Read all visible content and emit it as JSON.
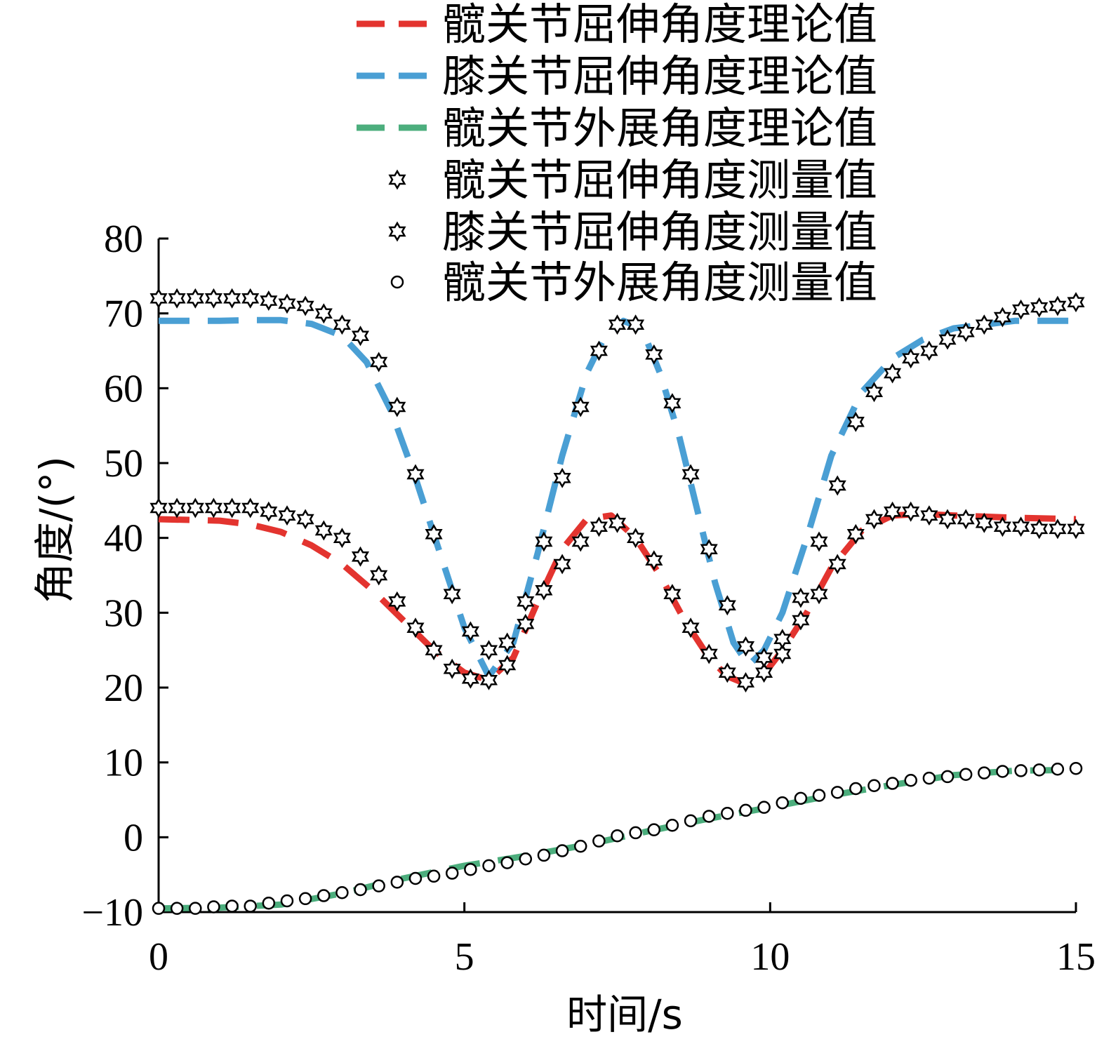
{
  "chart_data": {
    "type": "line",
    "xlabel": "时间/s",
    "ylabel": "角度/(°)",
    "xlim": [
      0,
      15
    ],
    "ylim": [
      -10,
      80
    ],
    "xticks": [
      0,
      5,
      10,
      15
    ],
    "yticks": [
      -10,
      0,
      10,
      20,
      30,
      40,
      50,
      60,
      70,
      80
    ],
    "grid": false,
    "legend_position": "top",
    "series": [
      {
        "name": "髋关节屈伸角度理论值",
        "style": "dashed",
        "color": "#e3342f",
        "x": [
          0,
          1,
          1.5,
          2,
          2.5,
          3,
          3.5,
          4,
          4.5,
          5,
          5.4,
          5.8,
          6.2,
          6.6,
          7,
          7.4,
          7.8,
          8.2,
          8.6,
          9,
          9.3,
          9.6,
          9.9,
          10.2,
          10.6,
          11,
          11.5,
          12,
          12.5,
          13,
          14,
          15
        ],
        "y": [
          42.5,
          42.3,
          41.8,
          40.8,
          39,
          36.5,
          33,
          29,
          25,
          22,
          21,
          24,
          31.5,
          38.5,
          42.5,
          43,
          40,
          35,
          29,
          24,
          21.5,
          20.5,
          21.8,
          25,
          30,
          36,
          41,
          43,
          43.2,
          43,
          42.7,
          42.5
        ]
      },
      {
        "name": "膝关节屈伸角度理论值",
        "style": "dashed",
        "color": "#4a9fd4",
        "x": [
          0,
          1,
          1.5,
          2,
          2.5,
          3,
          3.4,
          3.8,
          4.2,
          4.6,
          5,
          5.4,
          5.8,
          6.2,
          6.6,
          7,
          7.3,
          7.6,
          7.9,
          8.2,
          8.5,
          8.8,
          9.1,
          9.4,
          9.65,
          9.9,
          10.2,
          10.6,
          11,
          11.5,
          12,
          12.5,
          13,
          14,
          15
        ],
        "y": [
          69,
          69,
          69.1,
          69.1,
          68.6,
          67,
          63.5,
          57,
          48,
          38,
          28,
          21.5,
          26,
          38,
          51,
          62,
          67,
          69,
          68,
          62,
          54,
          44,
          34,
          26,
          23,
          25,
          30,
          40,
          51,
          59.5,
          64,
          66.5,
          68,
          69,
          69
        ]
      },
      {
        "name": "髋关节外展角度理论值",
        "style": "dashed",
        "color": "#4cae7d",
        "x": [
          0,
          1,
          2,
          3,
          4,
          5,
          6,
          7,
          8,
          9,
          10,
          11,
          12,
          13,
          14,
          15
        ],
        "y": [
          -9.5,
          -9.4,
          -9,
          -7.5,
          -5.5,
          -3.8,
          -2.5,
          -1,
          0.8,
          2.5,
          4,
          5.6,
          7,
          8.3,
          8.9,
          9
        ]
      },
      {
        "name": "髋关节屈伸角度测量值",
        "style": "marker-star-filled",
        "color": "#000000",
        "x": [
          0,
          0.3,
          0.6,
          0.9,
          1.2,
          1.5,
          1.8,
          2.1,
          2.4,
          2.7,
          3.0,
          3.3,
          3.6,
          3.9,
          4.2,
          4.5,
          4.8,
          5.1,
          5.4,
          5.7,
          6.0,
          6.3,
          6.6,
          6.9,
          7.2,
          7.5,
          7.8,
          8.1,
          8.4,
          8.7,
          9.0,
          9.3,
          9.6,
          9.9,
          10.2,
          10.5,
          10.8,
          11.1,
          11.4,
          11.7,
          12.0,
          12.3,
          12.6,
          12.9,
          13.2,
          13.5,
          13.8,
          14.1,
          14.4,
          14.7,
          15.0
        ],
        "y": [
          44,
          44,
          44,
          44,
          44,
          44,
          43.5,
          43,
          42.5,
          41,
          40,
          37.5,
          35,
          31.5,
          28,
          25,
          22.5,
          21.2,
          21,
          23,
          28.5,
          33,
          36.5,
          39.5,
          41.5,
          42,
          40,
          37,
          32.5,
          28,
          24.5,
          22,
          20.7,
          22,
          24.5,
          29,
          32.5,
          36.5,
          40.5,
          42.5,
          43.5,
          43.5,
          43,
          42.5,
          42.5,
          42,
          41.5,
          41.5,
          41.2,
          41.2,
          41.2
        ]
      },
      {
        "name": "膝关节屈伸角度测量值",
        "style": "marker-star-open",
        "color": "#000000",
        "x": [
          0,
          0.3,
          0.6,
          0.9,
          1.2,
          1.5,
          1.8,
          2.1,
          2.4,
          2.7,
          3.0,
          3.3,
          3.6,
          3.9,
          4.2,
          4.5,
          4.8,
          5.1,
          5.4,
          5.7,
          6.0,
          6.3,
          6.6,
          6.9,
          7.2,
          7.5,
          7.8,
          8.1,
          8.4,
          8.7,
          9.0,
          9.3,
          9.6,
          9.9,
          10.2,
          10.5,
          10.8,
          11.1,
          11.4,
          11.7,
          12.0,
          12.3,
          12.6,
          12.9,
          13.2,
          13.5,
          13.8,
          14.1,
          14.4,
          14.7,
          15.0
        ],
        "y": [
          72,
          72,
          72,
          72,
          72,
          72,
          71.7,
          71.3,
          71,
          70,
          68.5,
          67,
          63.5,
          57.5,
          48.5,
          40.5,
          32.5,
          27.5,
          25,
          26,
          31.5,
          39.5,
          48,
          57.5,
          65,
          68.5,
          68.5,
          64.5,
          58,
          48.5,
          38.5,
          31,
          25.5,
          24,
          26.5,
          32,
          39.5,
          47,
          55.5,
          59.5,
          62,
          64,
          65,
          66.5,
          67.5,
          68.5,
          69.5,
          70.5,
          70.8,
          71,
          71.5
        ]
      },
      {
        "name": "髋关节外展角度测量值",
        "style": "marker-circle-open",
        "color": "#000000",
        "x": [
          0,
          0.3,
          0.6,
          0.9,
          1.2,
          1.5,
          1.8,
          2.1,
          2.4,
          2.7,
          3.0,
          3.3,
          3.6,
          3.9,
          4.2,
          4.5,
          4.8,
          5.1,
          5.4,
          5.7,
          6.0,
          6.3,
          6.6,
          6.9,
          7.2,
          7.5,
          7.8,
          8.1,
          8.4,
          8.7,
          9.0,
          9.3,
          9.6,
          9.9,
          10.2,
          10.5,
          10.8,
          11.1,
          11.4,
          11.7,
          12.0,
          12.3,
          12.6,
          12.9,
          13.2,
          13.5,
          13.8,
          14.1,
          14.4,
          14.7,
          15.0
        ],
        "y": [
          -9.5,
          -9.5,
          -9.5,
          -9.3,
          -9.2,
          -9.2,
          -8.8,
          -8.5,
          -8.2,
          -7.8,
          -7.4,
          -7,
          -6.5,
          -6,
          -5.5,
          -5.2,
          -4.8,
          -4.3,
          -3.8,
          -3.4,
          -2.9,
          -2.4,
          -1.8,
          -1.2,
          -0.5,
          0.2,
          0.6,
          1,
          1.6,
          2.2,
          2.8,
          3.2,
          3.6,
          4,
          4.6,
          5.2,
          5.6,
          6,
          6.5,
          6.9,
          7.2,
          7.6,
          7.9,
          8.1,
          8.4,
          8.6,
          8.8,
          8.9,
          9,
          9.1,
          9.2
        ]
      }
    ]
  }
}
